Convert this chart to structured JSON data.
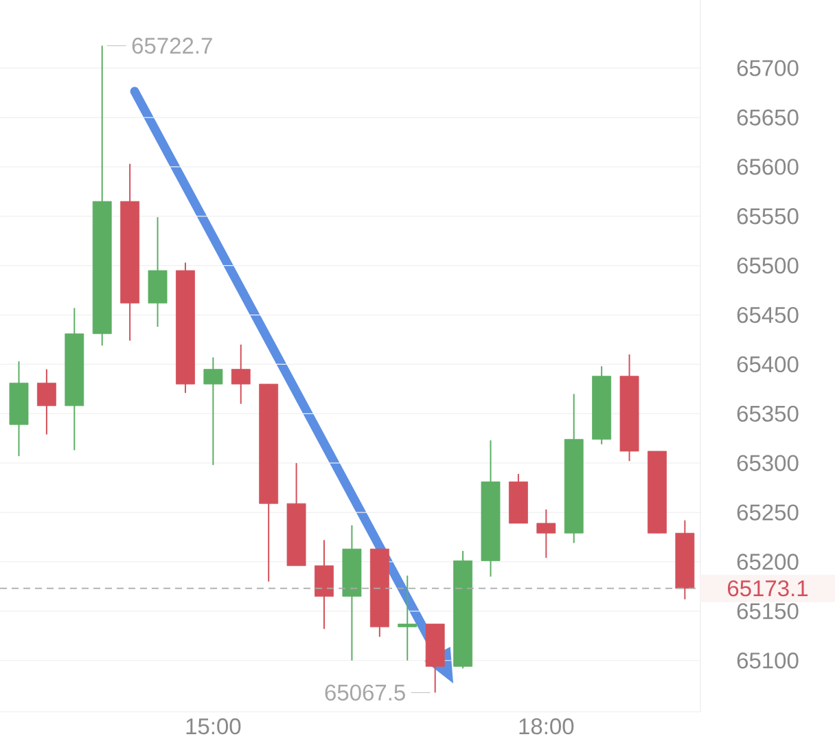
{
  "chart_data": {
    "type": "candlestick",
    "x": [
      13.25,
      13.5,
      13.75,
      14,
      14.25,
      14.5,
      14.75,
      15,
      15.25,
      15.5,
      15.75,
      16,
      16.25,
      16.5,
      16.75,
      17,
      17.25,
      17.5,
      17.75,
      18,
      18.25,
      18.5,
      18.75,
      19,
      19.25
    ],
    "ohlc": [
      [
        65339,
        65403,
        65307,
        65381
      ],
      [
        65381,
        65395,
        65329,
        65358
      ],
      [
        65358,
        65457,
        65313,
        65431
      ],
      [
        65431,
        65722.7,
        65419,
        65565
      ],
      [
        65565,
        65603,
        65424,
        65462
      ],
      [
        65462,
        65549,
        65438,
        65495
      ],
      [
        65495,
        65503,
        65371,
        65380
      ],
      [
        65380,
        65407,
        65298,
        65395
      ],
      [
        65395,
        65420,
        65360,
        65380
      ],
      [
        65380,
        65380,
        65180,
        65259
      ],
      [
        65259,
        65300,
        65196,
        65196
      ],
      [
        65196,
        65222,
        65132,
        65165
      ],
      [
        65165,
        65237,
        65100,
        65213
      ],
      [
        65213,
        65213,
        65124,
        65134
      ],
      [
        65134,
        65186,
        65100,
        65137
      ],
      [
        65137,
        65137,
        65067.5,
        65094
      ],
      [
        65094,
        65211,
        65092,
        65201
      ],
      [
        65201,
        65323,
        65185,
        65281
      ],
      [
        65281,
        65289,
        65239,
        65239
      ],
      [
        65239,
        65253,
        65204,
        65229
      ],
      [
        65229,
        65370,
        65219,
        65324
      ],
      [
        65324,
        65398,
        65319,
        65388
      ],
      [
        65388,
        65410,
        65302,
        65312
      ],
      [
        65312,
        65312,
        65229,
        65229
      ],
      [
        65229,
        65242,
        65162,
        65173.1
      ]
    ],
    "colors": [
      "#5cae63",
      "#d3505a",
      "#5cae63",
      "#5cae63",
      "#d3505a",
      "#5cae63",
      "#d3505a",
      "#5cae63",
      "#d3505a",
      "#d3505a",
      "#d3505a",
      "#d3505a",
      "#5cae63",
      "#d3505a",
      "#5cae63",
      "#d3505a",
      "#5cae63",
      "#5cae63",
      "#d3505a",
      "#d3505a",
      "#5cae63",
      "#5cae63",
      "#d3505a",
      "#d3505a",
      "#d3505a"
    ],
    "xlim": [
      13.08,
      19.39
    ],
    "ylim": [
      65048,
      65769
    ],
    "xticks": [
      {
        "value": 15,
        "label": "15:00"
      },
      {
        "value": 18,
        "label": "18:00"
      }
    ],
    "yticks": [
      65100,
      65150,
      65200,
      65250,
      65300,
      65350,
      65400,
      65450,
      65500,
      65550,
      65600,
      65650,
      65700
    ],
    "grid": "y",
    "ref_lines": [
      {
        "axis": "y",
        "value": 65173.1,
        "label": "65173.1",
        "color": "#aaaaaa",
        "line_style": "dashed"
      }
    ],
    "annotations": [
      {
        "text": "65722.7",
        "x": 14,
        "y": 65722.7
      },
      {
        "text": "65067.5",
        "x": 17,
        "y": 65067.5
      }
    ]
  }
}
